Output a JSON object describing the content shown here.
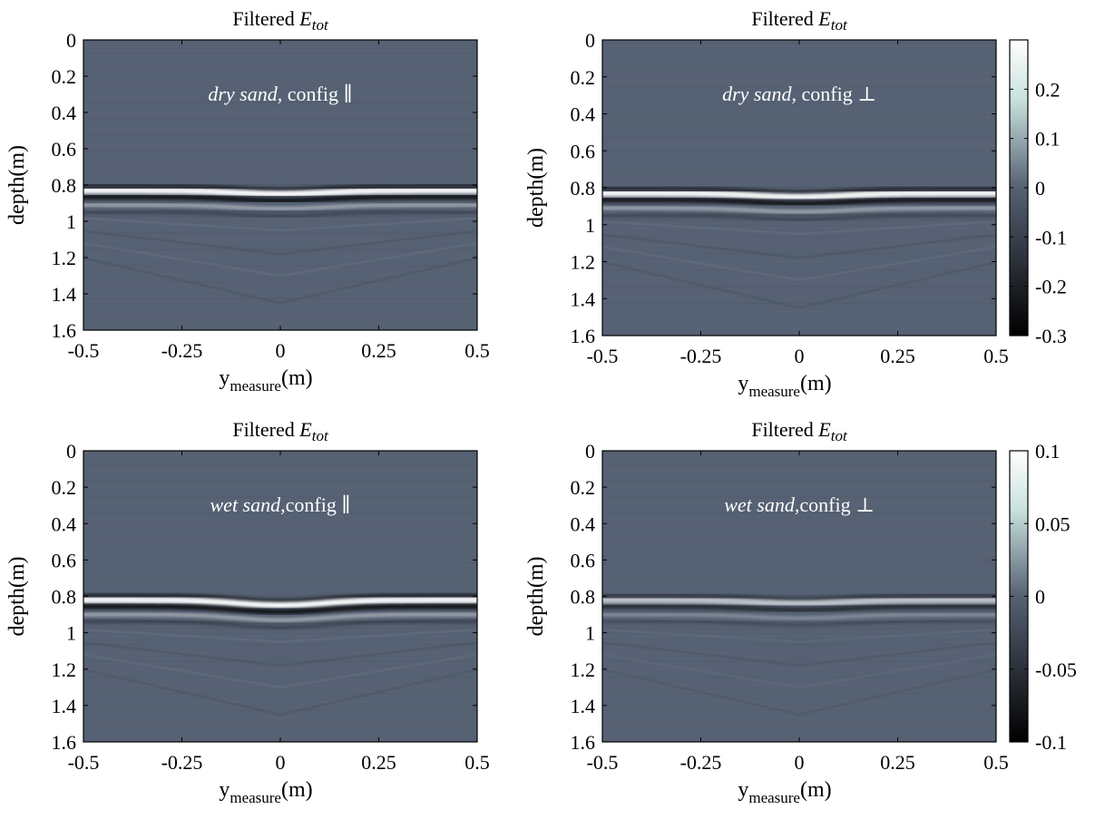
{
  "chart_data": [
    {
      "type": "heatmap",
      "title_prefix": "Filtered ",
      "title_var": "E",
      "title_sub": "tot",
      "annotation_italic": "dry sand",
      "annotation_rest": ", config ∥",
      "xlabel_main": "y",
      "xlabel_sub": "measure",
      "xlabel_unit": "(m)",
      "ylabel": "depth(m)",
      "xlim": [
        -0.5,
        0.5
      ],
      "ylim": [
        0,
        1.6
      ],
      "xticks": [
        "-0.5",
        "-0.25",
        "0",
        "0.25",
        "0.5"
      ],
      "yticks": [
        "0",
        "0.2",
        "0.4",
        "0.6",
        "0.8",
        "1",
        "1.2",
        "1.4",
        "1.6"
      ],
      "clim": [
        -0.3,
        0.3
      ],
      "reflection": {
        "edge_depth": 0.83,
        "center_depth": 0.85,
        "center_amplitude": 0.3,
        "edge_amplitude": 0.27
      },
      "colorbar": null
    },
    {
      "type": "heatmap",
      "title_prefix": "Filtered ",
      "title_var": "E",
      "title_sub": "tot",
      "annotation_italic": "dry sand",
      "annotation_rest": ", config ⊥",
      "xlabel_main": "y",
      "xlabel_sub": "measure",
      "xlabel_unit": "(m)",
      "ylabel": "depth(m)",
      "xlim": [
        -0.5,
        0.5
      ],
      "ylim": [
        0,
        1.6
      ],
      "xticks": [
        "-0.5",
        "-0.25",
        "0",
        "0.25",
        "0.5"
      ],
      "yticks": [
        "0",
        "0.2",
        "0.4",
        "0.6",
        "0.8",
        "1",
        "1.2",
        "1.4",
        "1.6"
      ],
      "clim": [
        -0.3,
        0.3
      ],
      "reflection": {
        "edge_depth": 0.83,
        "center_depth": 0.85,
        "center_amplitude": 0.25,
        "edge_amplitude": 0.22
      },
      "colorbar": {
        "ticks": [
          "0.2",
          "0.1",
          "0",
          "-0.1",
          "-0.2",
          "-0.3"
        ],
        "tick_values": [
          0.2,
          0.1,
          0,
          -0.1,
          -0.2,
          -0.3
        ],
        "range": [
          -0.3,
          0.3
        ]
      }
    },
    {
      "type": "heatmap",
      "title_prefix": "Filtered ",
      "title_var": "E",
      "title_sub": "tot",
      "annotation_italic": "wet sand",
      "annotation_rest": ",config ∥",
      "xlabel_main": "y",
      "xlabel_sub": "measure",
      "xlabel_unit": "(m)",
      "ylabel": "depth(m)",
      "xlim": [
        -0.5,
        0.5
      ],
      "ylim": [
        0,
        1.6
      ],
      "xticks": [
        "-0.5",
        "-0.25",
        "0",
        "0.25",
        "0.5"
      ],
      "yticks": [
        "0",
        "0.2",
        "0.4",
        "0.6",
        "0.8",
        "1",
        "1.2",
        "1.4",
        "1.6"
      ],
      "clim": [
        -0.1,
        0.1
      ],
      "reflection": {
        "edge_depth": 0.82,
        "center_depth": 0.85,
        "center_amplitude": 0.1,
        "edge_amplitude": 0.08
      },
      "colorbar": null
    },
    {
      "type": "heatmap",
      "title_prefix": "Filtered ",
      "title_var": "E",
      "title_sub": "tot",
      "annotation_italic": "wet sand",
      "annotation_rest": ",config ⊥",
      "xlabel_main": "y",
      "xlabel_sub": "measure",
      "xlabel_unit": "(m)",
      "ylabel": "depth(m)",
      "xlim": [
        -0.5,
        0.5
      ],
      "ylim": [
        0,
        1.6
      ],
      "xticks": [
        "-0.5",
        "-0.25",
        "0",
        "0.25",
        "0.5"
      ],
      "yticks": [
        "0",
        "0.2",
        "0.4",
        "0.6",
        "0.8",
        "1",
        "1.2",
        "1.4",
        "1.6"
      ],
      "clim": [
        -0.1,
        0.1
      ],
      "reflection": {
        "edge_depth": 0.82,
        "center_depth": 0.84,
        "center_amplitude": 0.05,
        "edge_amplitude": 0.04
      },
      "colorbar": {
        "ticks": [
          "0.1",
          "0.05",
          "0",
          "-0.05",
          "-0.1"
        ],
        "tick_values": [
          0.1,
          0.05,
          0,
          -0.05,
          -0.1
        ],
        "range": [
          -0.1,
          0.1
        ]
      }
    }
  ],
  "colors": {
    "background": "#566173",
    "positive": "#ffffff",
    "negative": "#000000",
    "colorbar_low": "#000000",
    "colorbar_mid": "#566173",
    "colorbar_high_tint": "#c9e2de",
    "colorbar_top": "#ffffff"
  }
}
